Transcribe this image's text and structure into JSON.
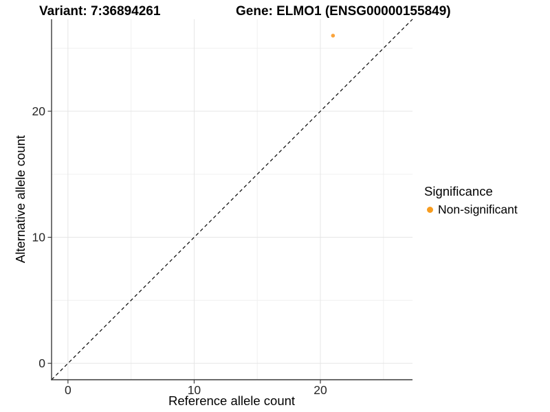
{
  "header": {
    "variant_title": "Variant: 7:36894261",
    "gene_title": "Gene: ELMO1 (ENSG00000155849)"
  },
  "legend": {
    "title": "Significance",
    "items": [
      {
        "label": "Non-significant",
        "color": "#F79C1F"
      }
    ]
  },
  "colors": {
    "axis_line": "#3a3a3a",
    "tick_mark": "#3a3a3a",
    "tick_label": "#262626",
    "grid_major": "#e5e5e5",
    "grid_minor": "#f0f0f0",
    "reference_line": "#000000",
    "point": "#FAA43C",
    "background": "#ffffff"
  },
  "chart_data": {
    "type": "scatter",
    "title": "Variant: 7:36894261 | Gene: ELMO1 (ENSG00000155849)",
    "xlabel": "Reference allele count",
    "ylabel": "Alternative allele count",
    "xlim": [
      -1.3,
      27.3
    ],
    "ylim": [
      -1.3,
      27.3
    ],
    "x_ticks": [
      0,
      10,
      20
    ],
    "y_ticks": [
      0,
      10,
      20
    ],
    "x_minor_gridlines": [
      5,
      15,
      25
    ],
    "y_minor_gridlines": [
      5,
      15,
      25
    ],
    "grid": true,
    "legend_position": "right",
    "legend_title": "Significance",
    "series": [
      {
        "name": "Non-significant",
        "color": "#FAA43C",
        "point_radius": 2.8,
        "points": [
          {
            "x": 21,
            "y": 26
          }
        ]
      }
    ],
    "reference_line": {
      "slope": 1,
      "intercept": 0,
      "style": "dashed"
    }
  }
}
